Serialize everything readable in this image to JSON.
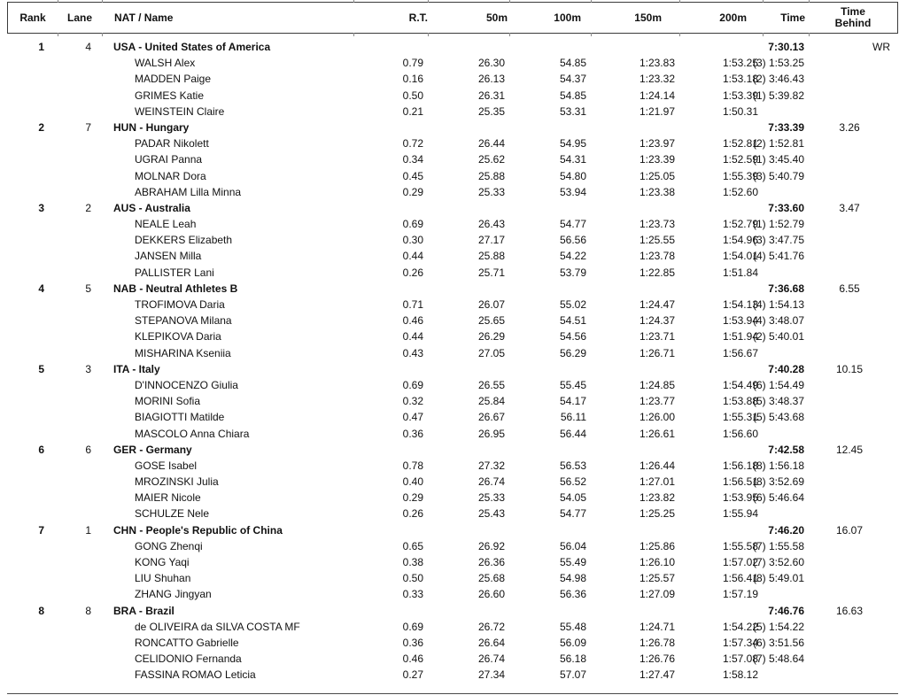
{
  "table": {
    "header": {
      "rank": "Rank",
      "lane": "Lane",
      "name": "NAT / Name",
      "rt": "R.T.",
      "m50": "50m",
      "m100": "100m",
      "m150": "150m",
      "m200": "200m",
      "time": "Time",
      "behind_line1": "Time",
      "behind_line2": "Behind"
    },
    "teams": [
      {
        "rank": "1",
        "lane": "4",
        "name": "USA - United States of America",
        "time": "7:30.13",
        "behind": "WR",
        "swimmers": [
          {
            "name": "WALSH Alex",
            "rt": "0.79",
            "m50": "26.30",
            "m100": "54.85",
            "m150": "1:23.83",
            "m200": "1:53.25",
            "split": "(3) 1:53.25"
          },
          {
            "name": "MADDEN Paige",
            "rt": "0.16",
            "m50": "26.13",
            "m100": "54.37",
            "m150": "1:23.32",
            "m200": "1:53.18",
            "split": "(2) 3:46.43"
          },
          {
            "name": "GRIMES Katie",
            "rt": "0.50",
            "m50": "26.31",
            "m100": "54.85",
            "m150": "1:24.14",
            "m200": "1:53.39",
            "split": "(1) 5:39.82"
          },
          {
            "name": "WEINSTEIN Claire",
            "rt": "0.21",
            "m50": "25.35",
            "m100": "53.31",
            "m150": "1:21.97",
            "m200": "1:50.31",
            "split": ""
          }
        ]
      },
      {
        "rank": "2",
        "lane": "7",
        "name": "HUN - Hungary",
        "time": "7:33.39",
        "behind": "3.26",
        "swimmers": [
          {
            "name": "PADAR Nikolett",
            "rt": "0.72",
            "m50": "26.44",
            "m100": "54.95",
            "m150": "1:23.97",
            "m200": "1:52.81",
            "split": "(2) 1:52.81"
          },
          {
            "name": "UGRAI Panna",
            "rt": "0.34",
            "m50": "25.62",
            "m100": "54.31",
            "m150": "1:23.39",
            "m200": "1:52.59",
            "split": "(1) 3:45.40"
          },
          {
            "name": "MOLNAR Dora",
            "rt": "0.45",
            "m50": "25.88",
            "m100": "54.80",
            "m150": "1:25.05",
            "m200": "1:55.39",
            "split": "(3) 5:40.79"
          },
          {
            "name": "ABRAHAM Lilla Minna",
            "rt": "0.29",
            "m50": "25.33",
            "m100": "53.94",
            "m150": "1:23.38",
            "m200": "1:52.60",
            "split": ""
          }
        ]
      },
      {
        "rank": "3",
        "lane": "2",
        "name": "AUS - Australia",
        "time": "7:33.60",
        "behind": "3.47",
        "swimmers": [
          {
            "name": "NEALE Leah",
            "rt": "0.69",
            "m50": "26.43",
            "m100": "54.77",
            "m150": "1:23.73",
            "m200": "1:52.79",
            "split": "(1) 1:52.79"
          },
          {
            "name": "DEKKERS Elizabeth",
            "rt": "0.30",
            "m50": "27.17",
            "m100": "56.56",
            "m150": "1:25.55",
            "m200": "1:54.96",
            "split": "(3) 3:47.75"
          },
          {
            "name": "JANSEN Milla",
            "rt": "0.44",
            "m50": "25.88",
            "m100": "54.22",
            "m150": "1:23.78",
            "m200": "1:54.01",
            "split": "(4) 5:41.76"
          },
          {
            "name": "PALLISTER Lani",
            "rt": "0.26",
            "m50": "25.71",
            "m100": "53.79",
            "m150": "1:22.85",
            "m200": "1:51.84",
            "split": ""
          }
        ]
      },
      {
        "rank": "4",
        "lane": "5",
        "name": "NAB - Neutral Athletes B",
        "time": "7:36.68",
        "behind": "6.55",
        "swimmers": [
          {
            "name": "TROFIMOVA Daria",
            "rt": "0.71",
            "m50": "26.07",
            "m100": "55.02",
            "m150": "1:24.47",
            "m200": "1:54.13",
            "split": "(4) 1:54.13"
          },
          {
            "name": "STEPANOVA Milana",
            "rt": "0.46",
            "m50": "25.65",
            "m100": "54.51",
            "m150": "1:24.37",
            "m200": "1:53.94",
            "split": "(4) 3:48.07"
          },
          {
            "name": "KLEPIKOVA Daria",
            "rt": "0.44",
            "m50": "26.29",
            "m100": "54.56",
            "m150": "1:23.71",
            "m200": "1:51.94",
            "split": "(2) 5:40.01"
          },
          {
            "name": "MISHARINA Kseniia",
            "rt": "0.43",
            "m50": "27.05",
            "m100": "56.29",
            "m150": "1:26.71",
            "m200": "1:56.67",
            "split": ""
          }
        ]
      },
      {
        "rank": "5",
        "lane": "3",
        "name": "ITA - Italy",
        "time": "7:40.28",
        "behind": "10.15",
        "swimmers": [
          {
            "name": "D'INNOCENZO Giulia",
            "rt": "0.69",
            "m50": "26.55",
            "m100": "55.45",
            "m150": "1:24.85",
            "m200": "1:54.49",
            "split": "(6) 1:54.49"
          },
          {
            "name": "MORINI Sofia",
            "rt": "0.32",
            "m50": "25.84",
            "m100": "54.17",
            "m150": "1:23.77",
            "m200": "1:53.88",
            "split": "(5) 3:48.37"
          },
          {
            "name": "BIAGIOTTI Matilde",
            "rt": "0.47",
            "m50": "26.67",
            "m100": "56.11",
            "m150": "1:26.00",
            "m200": "1:55.31",
            "split": "(5) 5:43.68"
          },
          {
            "name": "MASCOLO Anna Chiara",
            "rt": "0.36",
            "m50": "26.95",
            "m100": "56.44",
            "m150": "1:26.61",
            "m200": "1:56.60",
            "split": ""
          }
        ]
      },
      {
        "rank": "6",
        "lane": "6",
        "name": "GER - Germany",
        "time": "7:42.58",
        "behind": "12.45",
        "swimmers": [
          {
            "name": "GOSE Isabel",
            "rt": "0.78",
            "m50": "27.32",
            "m100": "56.53",
            "m150": "1:26.44",
            "m200": "1:56.18",
            "split": "(8) 1:56.18"
          },
          {
            "name": "MROZINSKI Julia",
            "rt": "0.40",
            "m50": "26.74",
            "m100": "56.52",
            "m150": "1:27.01",
            "m200": "1:56.51",
            "split": "(8) 3:52.69"
          },
          {
            "name": "MAIER Nicole",
            "rt": "0.29",
            "m50": "25.33",
            "m100": "54.05",
            "m150": "1:23.82",
            "m200": "1:53.95",
            "split": "(6) 5:46.64"
          },
          {
            "name": "SCHULZE Nele",
            "rt": "0.26",
            "m50": "25.43",
            "m100": "54.77",
            "m150": "1:25.25",
            "m200": "1:55.94",
            "split": ""
          }
        ]
      },
      {
        "rank": "7",
        "lane": "1",
        "name": "CHN - People's Republic of China",
        "time": "7:46.20",
        "behind": "16.07",
        "swimmers": [
          {
            "name": "GONG Zhenqi",
            "rt": "0.65",
            "m50": "26.92",
            "m100": "56.04",
            "m150": "1:25.86",
            "m200": "1:55.58",
            "split": "(7) 1:55.58"
          },
          {
            "name": "KONG Yaqi",
            "rt": "0.38",
            "m50": "26.36",
            "m100": "55.49",
            "m150": "1:26.10",
            "m200": "1:57.02",
            "split": "(7) 3:52.60"
          },
          {
            "name": "LIU Shuhan",
            "rt": "0.50",
            "m50": "25.68",
            "m100": "54.98",
            "m150": "1:25.57",
            "m200": "1:56.41",
            "split": "(8) 5:49.01"
          },
          {
            "name": "ZHANG Jingyan",
            "rt": "0.33",
            "m50": "26.60",
            "m100": "56.36",
            "m150": "1:27.09",
            "m200": "1:57.19",
            "split": ""
          }
        ]
      },
      {
        "rank": "8",
        "lane": "8",
        "name": "BRA - Brazil",
        "time": "7:46.76",
        "behind": "16.63",
        "swimmers": [
          {
            "name": "de OLIVEIRA da SILVA COSTA MF",
            "rt": "0.69",
            "m50": "26.72",
            "m100": "55.48",
            "m150": "1:24.71",
            "m200": "1:54.22",
            "split": "(5) 1:54.22"
          },
          {
            "name": "RONCATTO Gabrielle",
            "rt": "0.36",
            "m50": "26.64",
            "m100": "56.09",
            "m150": "1:26.78",
            "m200": "1:57.34",
            "split": "(6) 3:51.56"
          },
          {
            "name": "CELIDONIO Fernanda",
            "rt": "0.46",
            "m50": "26.74",
            "m100": "56.18",
            "m150": "1:26.76",
            "m200": "1:57.08",
            "split": "(7) 5:48.64"
          },
          {
            "name": "FASSINA ROMAO Leticia",
            "rt": "0.27",
            "m50": "27.34",
            "m100": "57.07",
            "m150": "1:27.47",
            "m200": "1:58.12",
            "split": ""
          }
        ]
      }
    ]
  }
}
